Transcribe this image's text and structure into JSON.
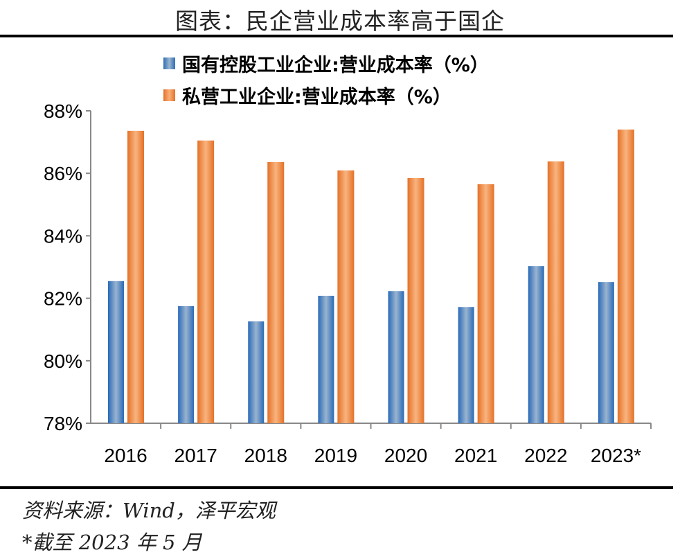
{
  "title": "图表：民企营业成本率高于国企",
  "chart_data": {
    "type": "bar",
    "categories": [
      "2016",
      "2017",
      "2018",
      "2019",
      "2020",
      "2021",
      "2022",
      "2023*"
    ],
    "series": [
      {
        "name": "国有控股工业企业:营业成本率（%）",
        "color": "#3a7abf",
        "values": [
          82.55,
          81.75,
          81.26,
          82.08,
          82.23,
          81.72,
          83.03,
          82.52
        ]
      },
      {
        "name": "私营工业企业:营业成本率（%）",
        "color": "#ed7d31",
        "values": [
          87.36,
          87.05,
          86.36,
          86.09,
          85.85,
          85.65,
          86.38,
          87.4
        ]
      }
    ],
    "ylim": [
      78,
      88
    ],
    "yticks": [
      "78%",
      "80%",
      "82%",
      "84%",
      "86%",
      "88%"
    ],
    "legend": "top",
    "grid": false
  },
  "footer": {
    "source": "资料来源：Wind，泽平宏观",
    "note": "*截至 2023 年 5 月"
  }
}
